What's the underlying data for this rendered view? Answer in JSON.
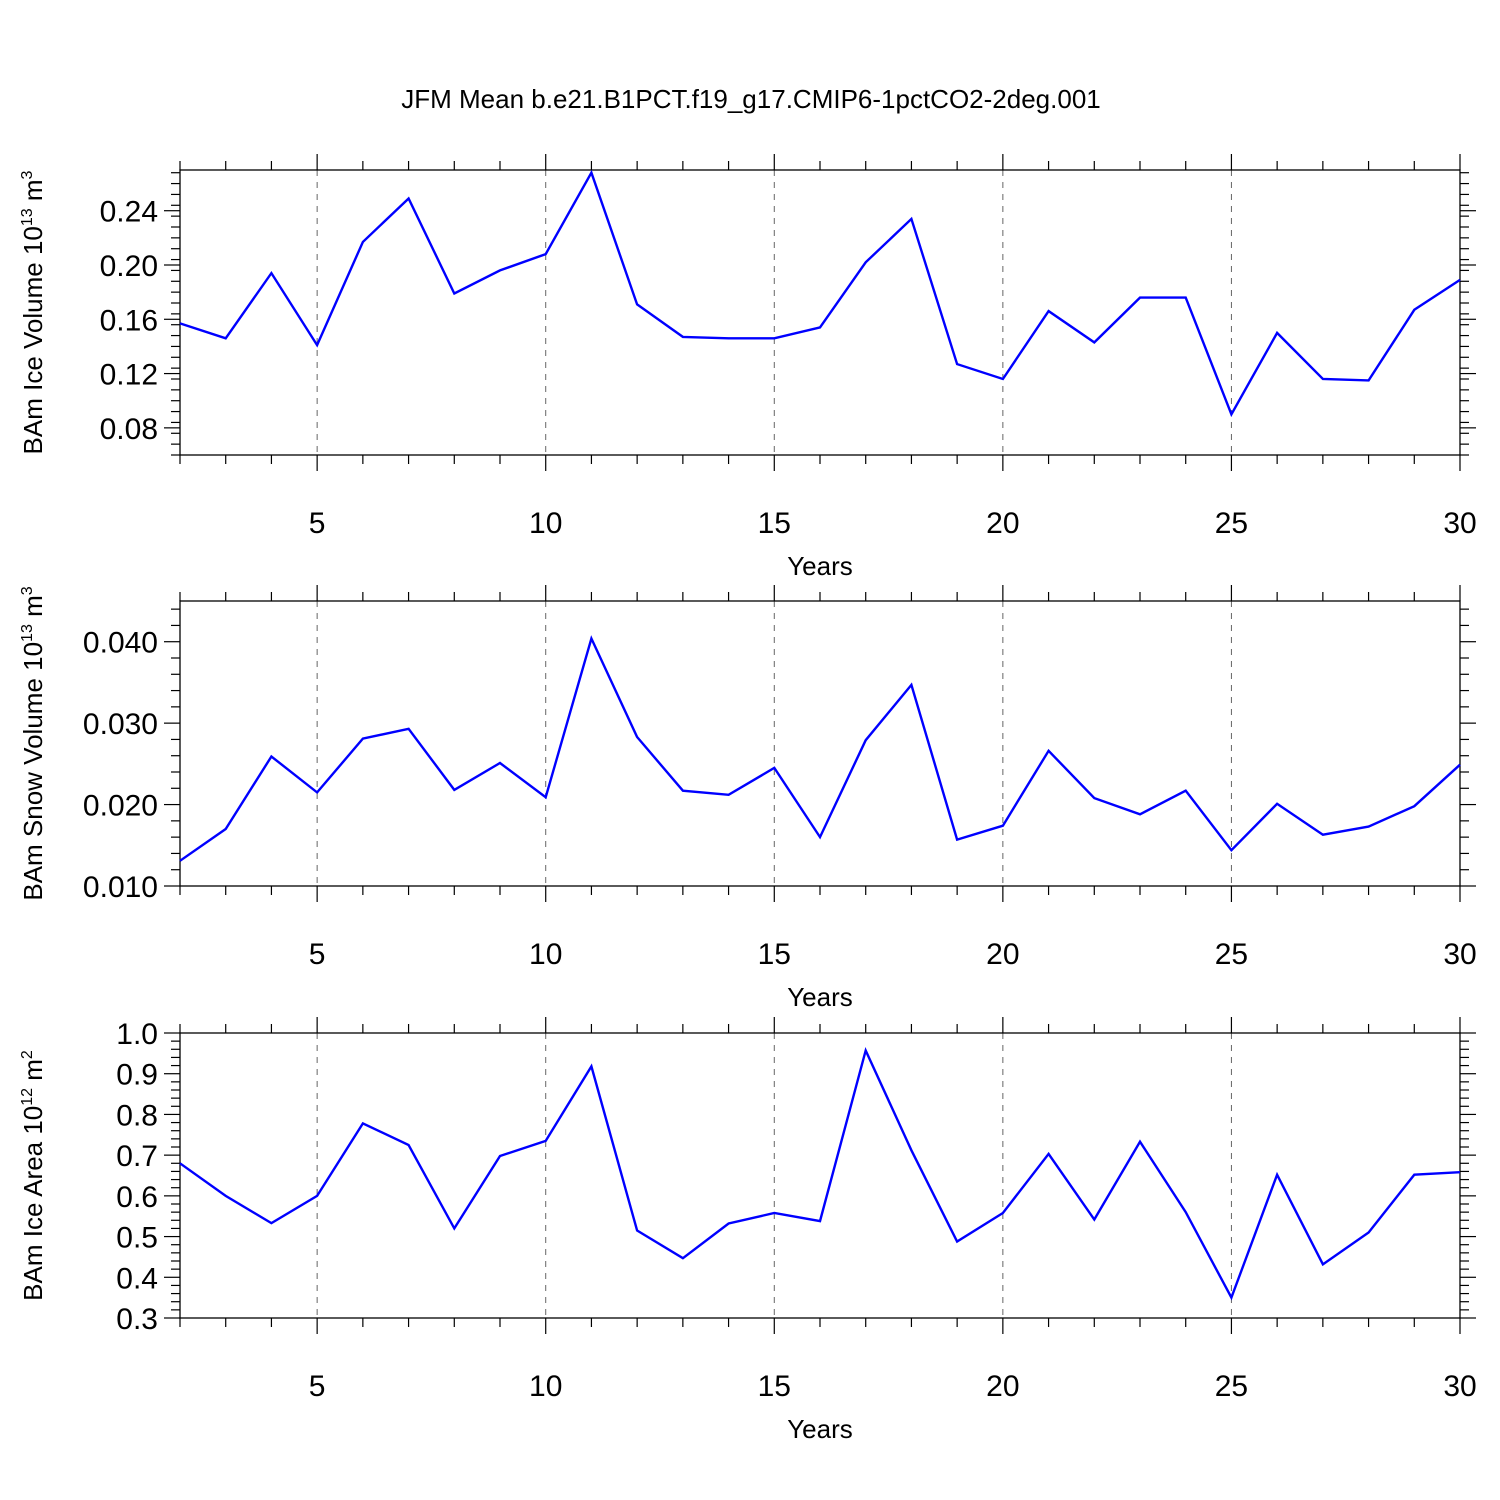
{
  "figure": {
    "title": "JFM Mean b.e21.B1PCT.f19_g17.CMIP6-1pctCO2-2deg.001",
    "line_color": "#0000ff",
    "grid_color": "#666666"
  },
  "chart_data": [
    {
      "type": "line",
      "xlabel": "Years",
      "ylabel": "BAm Ice Volume 10",
      "ylabel_sup": "13",
      "ylabel_unit": " m",
      "ylabel_unit_sup": "3",
      "xlim": [
        2,
        30
      ],
      "ylim": [
        0.06,
        0.27
      ],
      "xticks": [
        5,
        10,
        15,
        20,
        25,
        30
      ],
      "xtick_labels": [
        "5",
        "10",
        "15",
        "20",
        "25",
        "30"
      ],
      "yticks": [
        0.08,
        0.12,
        0.16,
        0.2,
        0.24
      ],
      "ytick_labels": [
        "0.08",
        "0.12",
        "0.16",
        "0.20",
        "0.24"
      ],
      "yminor_step": 0.008,
      "x_grid": true,
      "x": [
        2,
        3,
        4,
        5,
        6,
        7,
        8,
        9,
        10,
        11,
        12,
        13,
        14,
        15,
        16,
        17,
        18,
        19,
        20,
        21,
        22,
        23,
        24,
        25,
        26,
        27,
        28,
        29,
        30
      ],
      "series": [
        {
          "values": [
            0.157,
            0.146,
            0.194,
            0.141,
            0.217,
            0.249,
            0.179,
            0.196,
            0.208,
            0.268,
            0.171,
            0.147,
            0.146,
            0.146,
            0.154,
            0.202,
            0.234,
            0.127,
            0.116,
            0.166,
            0.143,
            0.176,
            0.176,
            0.09,
            0.15,
            0.116,
            0.115,
            0.167,
            0.189
          ]
        }
      ]
    },
    {
      "type": "line",
      "xlabel": "Years",
      "ylabel": "BAm Snow Volume 10",
      "ylabel_sup": "13",
      "ylabel_unit": " m",
      "ylabel_unit_sup": "3",
      "xlim": [
        2,
        30
      ],
      "ylim": [
        0.01,
        0.045
      ],
      "xticks": [
        5,
        10,
        15,
        20,
        25,
        30
      ],
      "xtick_labels": [
        "5",
        "10",
        "15",
        "20",
        "25",
        "30"
      ],
      "yticks": [
        0.01,
        0.02,
        0.03,
        0.04
      ],
      "ytick_labels": [
        "0.010",
        "0.020",
        "0.030",
        "0.040"
      ],
      "yminor_step": 0.002,
      "x_grid": true,
      "x": [
        2,
        3,
        4,
        5,
        6,
        7,
        8,
        9,
        10,
        11,
        12,
        13,
        14,
        15,
        16,
        17,
        18,
        19,
        20,
        21,
        22,
        23,
        24,
        25,
        26,
        27,
        28,
        29,
        30
      ],
      "series": [
        {
          "values": [
            0.0131,
            0.017,
            0.0259,
            0.0215,
            0.0281,
            0.0293,
            0.0218,
            0.0251,
            0.0209,
            0.0404,
            0.0283,
            0.0217,
            0.0212,
            0.0245,
            0.016,
            0.0279,
            0.0347,
            0.0157,
            0.0174,
            0.0266,
            0.0208,
            0.0188,
            0.0217,
            0.0144,
            0.0201,
            0.0163,
            0.0173,
            0.0198,
            0.0249
          ]
        }
      ]
    },
    {
      "type": "line",
      "xlabel": "Years",
      "ylabel": "BAm Ice Area 10",
      "ylabel_sup": "12",
      "ylabel_unit": " m",
      "ylabel_unit_sup": "2",
      "xlim": [
        2,
        30
      ],
      "ylim": [
        0.3,
        1.0
      ],
      "xticks": [
        5,
        10,
        15,
        20,
        25,
        30
      ],
      "xtick_labels": [
        "5",
        "10",
        "15",
        "20",
        "25",
        "30"
      ],
      "yticks": [
        0.3,
        0.4,
        0.5,
        0.6,
        0.7,
        0.8,
        0.9,
        1.0
      ],
      "ytick_labels": [
        "0.3",
        "0.4",
        "0.5",
        "0.6",
        "0.7",
        "0.8",
        "0.9",
        "1.0"
      ],
      "yminor_step": 0.02,
      "x_grid": true,
      "x": [
        2,
        3,
        4,
        5,
        6,
        7,
        8,
        9,
        10,
        11,
        12,
        13,
        14,
        15,
        16,
        17,
        18,
        19,
        20,
        21,
        22,
        23,
        24,
        25,
        26,
        27,
        28,
        29,
        30
      ],
      "series": [
        {
          "values": [
            0.68,
            0.6,
            0.533,
            0.6,
            0.778,
            0.725,
            0.52,
            0.698,
            0.735,
            0.918,
            0.515,
            0.447,
            0.532,
            0.558,
            0.538,
            0.957,
            0.712,
            0.488,
            0.558,
            0.703,
            0.542,
            0.733,
            0.56,
            0.35,
            0.652,
            0.432,
            0.51,
            0.652,
            0.658
          ]
        }
      ]
    }
  ]
}
